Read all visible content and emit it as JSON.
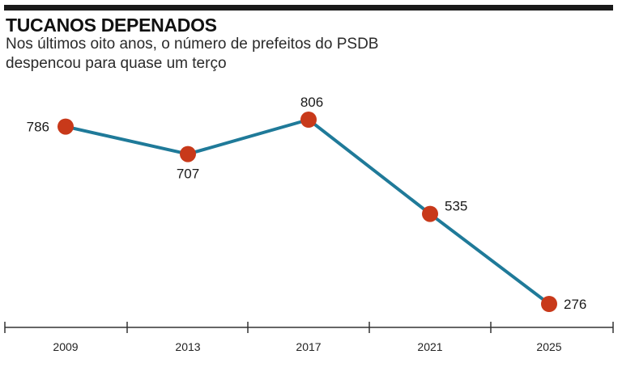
{
  "chart_data": {
    "type": "line",
    "title": "TUCANOS DEPENADOS",
    "subtitle": "Nos últimos oito anos, o número de prefeitos do PSDB despencou para quase um terço",
    "xlabel": "",
    "ylabel": "",
    "categories": [
      "2009",
      "2013",
      "2017",
      "2021",
      "2025"
    ],
    "values": [
      786,
      707,
      806,
      535,
      276
    ],
    "data_labels": [
      "786",
      "707",
      "806",
      "535",
      "276"
    ],
    "grid": false,
    "legend": "none",
    "colors": {
      "line": "#1f7a99",
      "marker": "#c8391a",
      "text": "#1a1a1a"
    }
  }
}
